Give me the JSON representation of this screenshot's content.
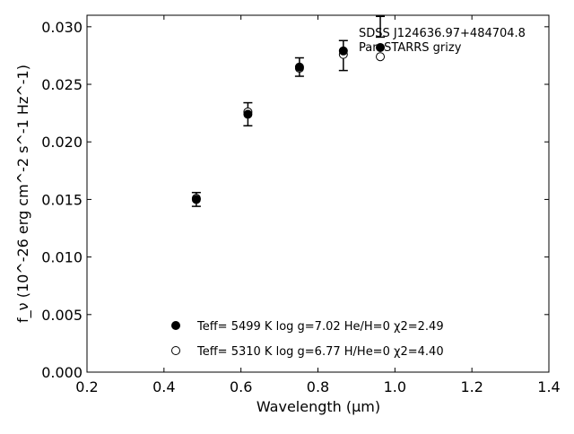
{
  "chart_data": {
    "type": "scatter",
    "title": "",
    "xlabel": "Wavelength (μm)",
    "ylabel": "f_ν (10^-26 erg cm^-2 s^-1 Hz^-1)",
    "xlim": [
      0.2,
      1.4
    ],
    "ylim": [
      0.0,
      0.031
    ],
    "xticks": [
      "0.2",
      "0.4",
      "0.6",
      "0.8",
      "1.0",
      "1.2",
      "1.4"
    ],
    "yticks": [
      "0.000",
      "0.005",
      "0.010",
      "0.015",
      "0.020",
      "0.025",
      "0.030"
    ],
    "grid": false,
    "legend_position": "lower-center",
    "annotation": [
      "SDSS J124636.97+484704.8",
      "Pan-STARRS grizy"
    ],
    "observed": {
      "x": [
        0.484,
        0.618,
        0.752,
        0.866,
        0.962
      ],
      "y": [
        0.015,
        0.0224,
        0.0265,
        0.0275,
        0.03
      ],
      "yerr": [
        0.0006,
        0.001,
        0.0008,
        0.0013,
        0.0009
      ]
    },
    "series": [
      {
        "name": "Teff= 5499 K  log g=7.02  He/H=0  χ2=2.49",
        "marker": "filled-circle",
        "x": [
          0.484,
          0.618,
          0.752,
          0.866,
          0.962
        ],
        "y": [
          0.015,
          0.0224,
          0.0265,
          0.0279,
          0.0282
        ]
      },
      {
        "name": "Teff= 5310 K  log g=6.77  H/He=0  χ2=4.40",
        "marker": "open-circle",
        "x": [
          0.484,
          0.618,
          0.752,
          0.866,
          0.962
        ],
        "y": [
          0.0151,
          0.0226,
          0.0264,
          0.0276,
          0.0274
        ]
      }
    ],
    "colors": {
      "marker": "#000000",
      "background": "#ffffff"
    }
  }
}
